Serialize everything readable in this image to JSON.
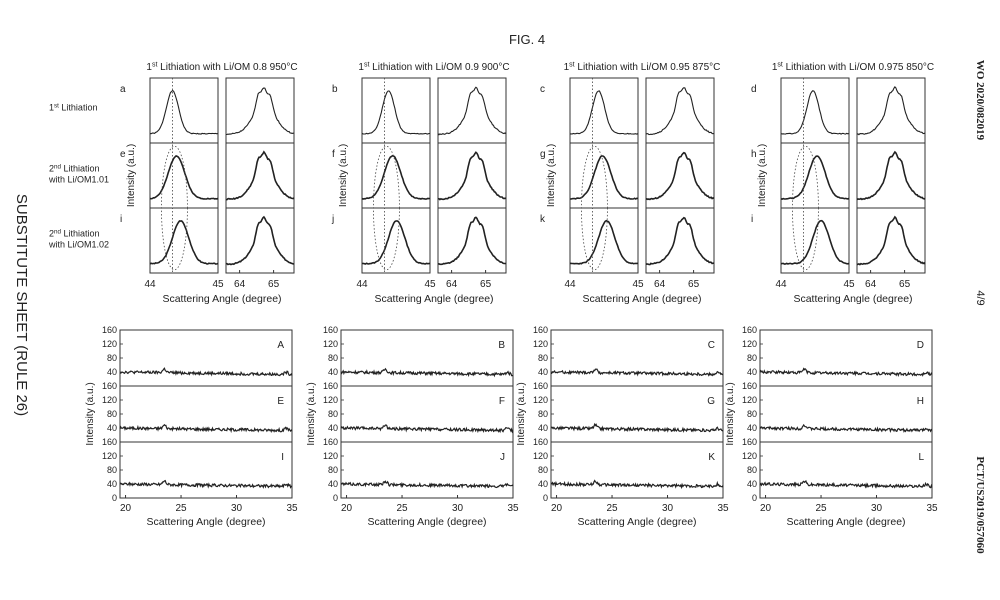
{
  "page": {
    "fig_label": "FIG. 4",
    "side_left": "SUBSTITUTE SHEET (RULE 26)",
    "side_right_top": "WO 2020/082019",
    "side_right_mid": "4/9",
    "side_right_bottom": "PCT/US2019/057060"
  },
  "chart_data": [
    {
      "type": "line",
      "group": "top-xrd-panels",
      "row_labels": [
        {
          "pre": "1",
          "sup": "st",
          "post": " Lithiation",
          "line2": ""
        },
        {
          "pre": "2",
          "sup": "nd",
          "post": " Lithiation",
          "line2": "with Li/OM1.01"
        },
        {
          "pre": "2",
          "sup": "nd",
          "post": " Lithiation",
          "line2": "with Li/OM1.02"
        }
      ],
      "columns": [
        {
          "title_pre": "1",
          "title_sup": "st",
          "title_post": " Lithiation with Li/OM 0.8 950°C",
          "panel_letters": [
            "a",
            "e",
            "i"
          ]
        },
        {
          "title_pre": "1",
          "title_sup": "st",
          "title_post": " Lithiation with Li/OM 0.9 900°C",
          "panel_letters": [
            "b",
            "f",
            "j"
          ]
        },
        {
          "title_pre": "1",
          "title_sup": "st",
          "title_post": " Lithiation with Li/OM 0.95 875°C",
          "panel_letters": [
            "c",
            "g",
            "k"
          ]
        },
        {
          "title_pre": "1",
          "title_sup": "st",
          "title_post": " Lithiation with Li/OM 0.975 850°C",
          "panel_letters": [
            "d",
            "h",
            "i"
          ]
        }
      ],
      "ylabel": "Intensity (a.u.)",
      "xlabel": "Scattering Angle (degree)",
      "left_xlim": [
        44,
        45
      ],
      "left_ticks": [
        "44",
        "45"
      ],
      "right_xlim": [
        63.6,
        65.6
      ],
      "right_ticks": [
        "64",
        "65"
      ],
      "peak_003_center_deg": [
        44.33,
        44.39,
        44.42,
        44.47
      ],
      "peak_center_shift_by_row": [
        0,
        0.06,
        0.12
      ],
      "peak_104_centers_deg": [
        64.55,
        64.72,
        64.9
      ],
      "dotted_line_position_deg": 44.33,
      "ellipse_rows": [
        "e-h",
        "i-l"
      ]
    },
    {
      "type": "line",
      "group": "bottom-xrd-panels",
      "panel_letters": [
        [
          "A",
          "E",
          "I"
        ],
        [
          "B",
          "F",
          "J"
        ],
        [
          "C",
          "G",
          "K"
        ],
        [
          "D",
          "H",
          "L"
        ]
      ],
      "ylabel": "Intensity (a.u.)",
      "xlabel": "Scattering Angle (degree)",
      "xlim": [
        19.5,
        35
      ],
      "xticks": [
        "20",
        "25",
        "30",
        "35"
      ],
      "ylim": [
        0,
        160
      ],
      "yticks": [
        "0",
        "40",
        "80",
        "120",
        "160"
      ],
      "baseline_intensity": [
        40,
        33
      ],
      "noise_amplitude": 8,
      "small_peak_positions_deg": [
        23.5,
        34.5
      ],
      "small_peak_heights": [
        10,
        6
      ]
    }
  ]
}
